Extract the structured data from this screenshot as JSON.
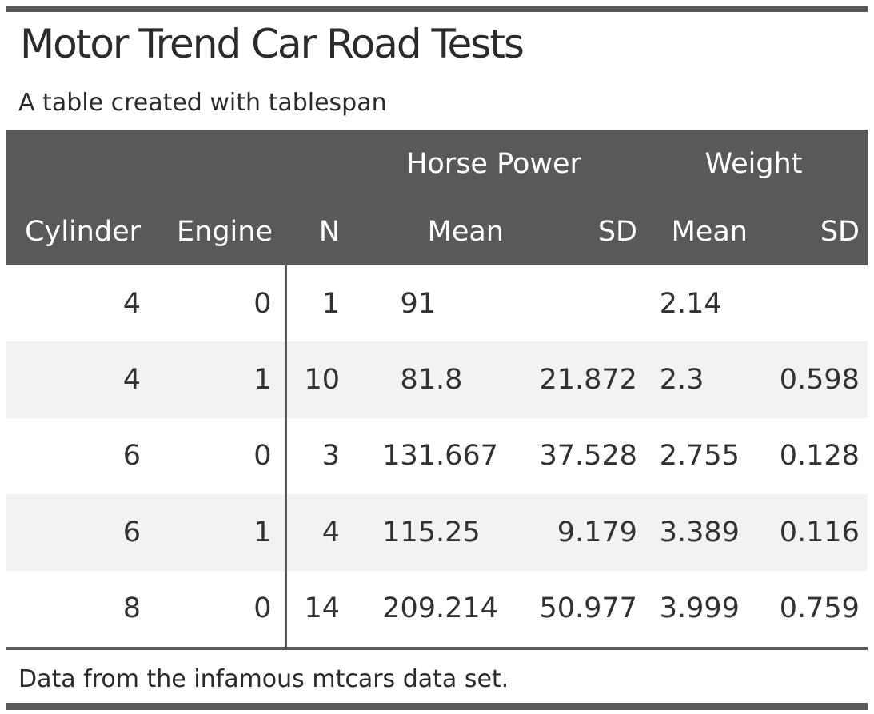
{
  "title": "Motor Trend Car Road Tests",
  "subtitle": "A table created with tablespan",
  "footnote": "Data from the infamous mtcars data set.",
  "colors": {
    "header_bg": "#595959",
    "header_text": "#ffffff",
    "body_text": "#323232",
    "stripe_row_bg": "#f2f2f2",
    "rule": "#595959"
  },
  "table": {
    "spanners": [
      {
        "label": "",
        "colspan": 3
      },
      {
        "label": "Horse Power",
        "colspan": 2
      },
      {
        "label": "Weight",
        "colspan": 2
      }
    ],
    "columns": [
      {
        "label": "Cylinder",
        "key": "cylinder",
        "align": "right"
      },
      {
        "label": "Engine",
        "key": "engine",
        "align": "right"
      },
      {
        "label": "N",
        "key": "n",
        "align": "right"
      },
      {
        "label": "Mean",
        "key": "hp_mean",
        "align": "decimal"
      },
      {
        "label": "SD",
        "key": "hp_sd",
        "align": "decimal"
      },
      {
        "label": "Mean",
        "key": "wt_mean",
        "align": "decimal"
      },
      {
        "label": "SD",
        "key": "wt_sd",
        "align": "decimal"
      }
    ],
    "rows": [
      [
        "4",
        "0",
        "1",
        "91",
        "",
        "2.14",
        ""
      ],
      [
        "4",
        "1",
        "10",
        "81.8",
        "21.872",
        "2.3",
        "0.598"
      ],
      [
        "6",
        "0",
        "3",
        "131.667",
        "37.528",
        "2.755",
        "0.128"
      ],
      [
        "6",
        "1",
        "4",
        "115.25",
        "9.179",
        "3.389",
        "0.116"
      ],
      [
        "8",
        "0",
        "14",
        "209.214",
        "50.977",
        "3.999",
        "0.759"
      ]
    ]
  }
}
